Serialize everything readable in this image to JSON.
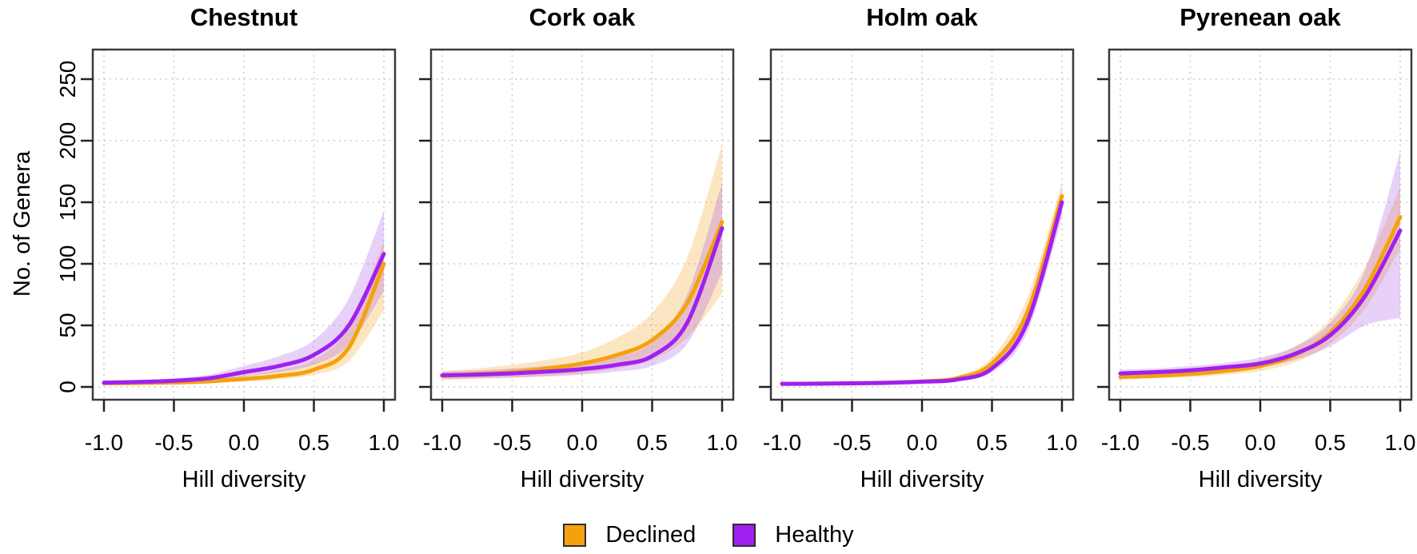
{
  "y_axis": {
    "label": "No. of Genera",
    "ticks": [
      "0",
      "50",
      "100",
      "150",
      "200",
      "250"
    ],
    "tick_values": [
      0,
      50,
      100,
      150,
      200,
      250
    ],
    "range": [
      -12,
      274
    ]
  },
  "x_axis": {
    "label": "Hill diversity",
    "ticks": [
      "-1.0",
      "-0.5",
      "0.0",
      "0.5",
      "1.0"
    ],
    "tick_values": [
      -1,
      -0.5,
      0,
      0.5,
      1
    ],
    "range": [
      -1.08,
      1.08
    ]
  },
  "legend": {
    "position": "bottom-center",
    "items": [
      {
        "label": "Declined",
        "color": "#F5A10D"
      },
      {
        "label": "Healthy",
        "color": "#A020F0"
      }
    ]
  },
  "colors": {
    "declined_line": "#F5A10D",
    "declined_band": "rgba(245,166,35,0.28)",
    "healthy_line": "#A020F0",
    "healthy_band": "rgba(160,70,230,0.25)",
    "grid": "#cdcdcd",
    "box": "#3a3a3a",
    "tick": "#222222",
    "text": "#000000"
  },
  "chart_data": [
    {
      "type": "line",
      "title": "Chestnut",
      "xlabel": "Hill diversity",
      "ylabel": "No. of Genera",
      "xlim": [
        -1,
        1
      ],
      "ylim": [
        0,
        250
      ],
      "grid": true,
      "legend_position": "bottom",
      "x": [
        -1,
        -0.75,
        -0.5,
        -0.25,
        0,
        0.25,
        0.5,
        0.75,
        1
      ],
      "series": [
        {
          "name": "Declined",
          "values": [
            3,
            3.2,
            3.6,
            4.5,
            6.5,
            9,
            14,
            32,
            100
          ],
          "ci_lower": [
            2,
            2.2,
            2.6,
            3.2,
            4.5,
            6,
            10,
            21,
            62
          ],
          "ci_upper": [
            4,
            4.5,
            5.5,
            7,
            9.5,
            14,
            22,
            48,
            118
          ]
        },
        {
          "name": "Healthy",
          "values": [
            3.5,
            4,
            5,
            7,
            12,
            17,
            26,
            50,
            108
          ],
          "ci_lower": [
            2.5,
            3,
            3.8,
            5,
            8.5,
            12,
            18,
            34,
            78
          ],
          "ci_upper": [
            4.5,
            5.5,
            7,
            10,
            17,
            25,
            38,
            72,
            143
          ]
        }
      ]
    },
    {
      "type": "line",
      "title": "Cork oak",
      "xlabel": "Hill diversity",
      "ylabel": "No. of Genera",
      "xlim": [
        -1,
        1
      ],
      "ylim": [
        0,
        250
      ],
      "grid": true,
      "legend_position": "bottom",
      "x": [
        -1,
        -0.75,
        -0.5,
        -0.25,
        0,
        0.25,
        0.5,
        0.75,
        1
      ],
      "series": [
        {
          "name": "Declined",
          "values": [
            9,
            10.5,
            12,
            15,
            19,
            26,
            38,
            68,
            134
          ],
          "ci_lower": [
            5.5,
            6.5,
            7.5,
            9,
            11,
            15,
            22,
            40,
            76
          ],
          "ci_upper": [
            13,
            15,
            18,
            22,
            28,
            40,
            60,
            105,
            197
          ]
        },
        {
          "name": "Healthy",
          "values": [
            9.5,
            10,
            11,
            12.5,
            14.5,
            18,
            25,
            52,
            129
          ],
          "ci_lower": [
            6.5,
            7,
            7.5,
            8.5,
            10,
            12.5,
            17,
            35,
            93
          ],
          "ci_upper": [
            12.5,
            13.5,
            15,
            17,
            20,
            25,
            36,
            75,
            166
          ]
        }
      ]
    },
    {
      "type": "line",
      "title": "Holm oak",
      "xlabel": "Hill diversity",
      "ylabel": "No. of Genera",
      "xlim": [
        -1,
        1
      ],
      "ylim": [
        0,
        250
      ],
      "grid": true,
      "legend_position": "bottom",
      "x": [
        -1,
        -0.75,
        -0.5,
        -0.25,
        0,
        0.25,
        0.5,
        0.75,
        1
      ],
      "series": [
        {
          "name": "Declined",
          "values": [
            2.5,
            2.7,
            3,
            3.5,
            4.5,
            7,
            19,
            60,
            155
          ],
          "ci_lower": [
            2,
            2.2,
            2.5,
            2.8,
            3.5,
            5.5,
            15,
            48,
            142
          ],
          "ci_upper": [
            3,
            3.3,
            3.8,
            4.5,
            6,
            9,
            24,
            72,
            166
          ]
        },
        {
          "name": "Healthy",
          "values": [
            2.5,
            2.6,
            2.9,
            3.3,
            4.2,
            6,
            15,
            52,
            150
          ],
          "ci_lower": [
            2,
            2.1,
            2.4,
            2.7,
            3.4,
            5,
            12,
            44,
            138
          ],
          "ci_upper": [
            3,
            3.2,
            3.5,
            4,
            5.2,
            7.5,
            19,
            62,
            160
          ]
        }
      ]
    },
    {
      "type": "line",
      "title": "Pyrenean oak",
      "xlabel": "Hill diversity",
      "ylabel": "No. of Genera",
      "xlim": [
        -1,
        1
      ],
      "ylim": [
        0,
        250
      ],
      "grid": true,
      "legend_position": "bottom",
      "x": [
        -1,
        -0.75,
        -0.5,
        -0.25,
        0,
        0.25,
        0.5,
        0.75,
        1
      ],
      "series": [
        {
          "name": "Declined",
          "values": [
            8,
            9,
            10.5,
            13,
            17,
            26,
            44,
            80,
            138
          ],
          "ci_lower": [
            6,
            7,
            8,
            10,
            13,
            20,
            35,
            64,
            112
          ],
          "ci_upper": [
            10.5,
            11.5,
            13.5,
            17,
            22,
            33,
            55,
            98,
            162
          ]
        },
        {
          "name": "Healthy",
          "values": [
            11,
            12,
            13.5,
            16,
            19,
            27,
            42,
            74,
            127
          ],
          "ci_lower": [
            8.5,
            9.5,
            11,
            13,
            16,
            22,
            33,
            50,
            56
          ],
          "ci_upper": [
            14,
            15,
            17,
            19.5,
            24,
            33,
            52,
            95,
            191
          ]
        }
      ]
    }
  ]
}
